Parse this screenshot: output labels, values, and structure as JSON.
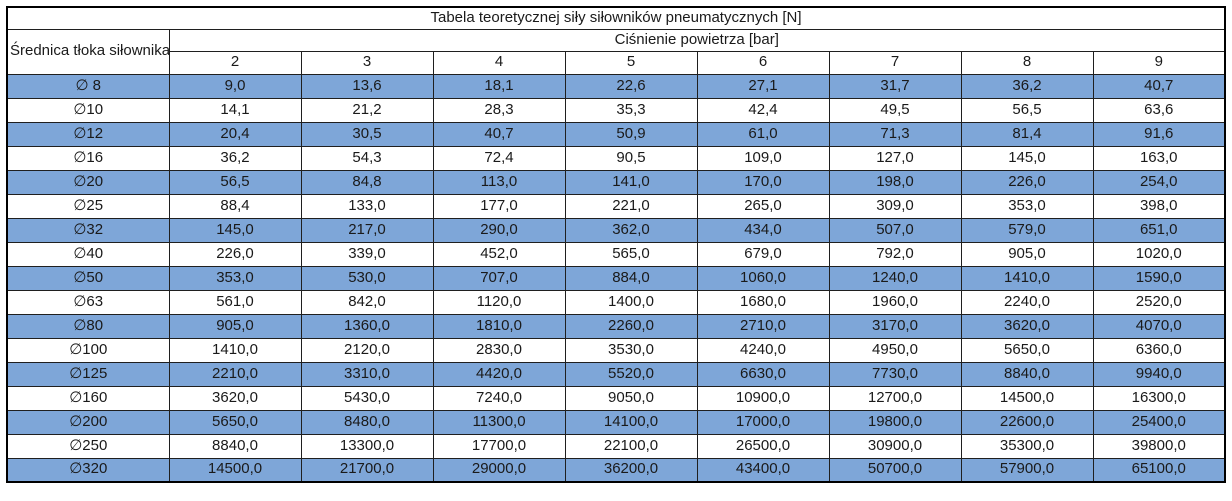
{
  "colors": {
    "highlight_row_bg": "#7EA6D8",
    "normal_row_bg": "#FFFFFF",
    "inner_border": "#1F1F1F",
    "outer_border": "#000000",
    "text": "#1A1A1A",
    "page_background": "#FFFFFF"
  },
  "chart_data": {
    "type": "table",
    "title": "Tabela teoretycznej siły siłowników pneumatycznych [N]",
    "row_axis_label": "Średnica tłoka siłownika",
    "column_group_label": "Ciśnienie powietrza [bar]",
    "columns": [
      "2",
      "3",
      "4",
      "5",
      "6",
      "7",
      "8",
      "9"
    ],
    "rows": [
      {
        "label": "∅ 8",
        "highlighted": true,
        "values": [
          "9,0",
          "13,6",
          "18,1",
          "22,6",
          "27,1",
          "31,7",
          "36,2",
          "40,7"
        ]
      },
      {
        "label": "∅10",
        "highlighted": false,
        "values": [
          "14,1",
          "21,2",
          "28,3",
          "35,3",
          "42,4",
          "49,5",
          "56,5",
          "63,6"
        ]
      },
      {
        "label": "∅12",
        "highlighted": true,
        "values": [
          "20,4",
          "30,5",
          "40,7",
          "50,9",
          "61,0",
          "71,3",
          "81,4",
          "91,6"
        ]
      },
      {
        "label": "∅16",
        "highlighted": false,
        "values": [
          "36,2",
          "54,3",
          "72,4",
          "90,5",
          "109,0",
          "127,0",
          "145,0",
          "163,0"
        ]
      },
      {
        "label": "∅20",
        "highlighted": true,
        "values": [
          "56,5",
          "84,8",
          "113,0",
          "141,0",
          "170,0",
          "198,0",
          "226,0",
          "254,0"
        ]
      },
      {
        "label": "∅25",
        "highlighted": false,
        "values": [
          "88,4",
          "133,0",
          "177,0",
          "221,0",
          "265,0",
          "309,0",
          "353,0",
          "398,0"
        ]
      },
      {
        "label": "∅32",
        "highlighted": true,
        "values": [
          "145,0",
          "217,0",
          "290,0",
          "362,0",
          "434,0",
          "507,0",
          "579,0",
          "651,0"
        ]
      },
      {
        "label": "∅40",
        "highlighted": false,
        "values": [
          "226,0",
          "339,0",
          "452,0",
          "565,0",
          "679,0",
          "792,0",
          "905,0",
          "1020,0"
        ]
      },
      {
        "label": "∅50",
        "highlighted": true,
        "values": [
          "353,0",
          "530,0",
          "707,0",
          "884,0",
          "1060,0",
          "1240,0",
          "1410,0",
          "1590,0"
        ]
      },
      {
        "label": "∅63",
        "highlighted": false,
        "values": [
          "561,0",
          "842,0",
          "1120,0",
          "1400,0",
          "1680,0",
          "1960,0",
          "2240,0",
          "2520,0"
        ]
      },
      {
        "label": "∅80",
        "highlighted": true,
        "values": [
          "905,0",
          "1360,0",
          "1810,0",
          "2260,0",
          "2710,0",
          "3170,0",
          "3620,0",
          "4070,0"
        ]
      },
      {
        "label": "∅100",
        "highlighted": false,
        "values": [
          "1410,0",
          "2120,0",
          "2830,0",
          "3530,0",
          "4240,0",
          "4950,0",
          "5650,0",
          "6360,0"
        ]
      },
      {
        "label": "∅125",
        "highlighted": true,
        "values": [
          "2210,0",
          "3310,0",
          "4420,0",
          "5520,0",
          "6630,0",
          "7730,0",
          "8840,0",
          "9940,0"
        ]
      },
      {
        "label": "∅160",
        "highlighted": false,
        "values": [
          "3620,0",
          "5430,0",
          "7240,0",
          "9050,0",
          "10900,0",
          "12700,0",
          "14500,0",
          "16300,0"
        ]
      },
      {
        "label": "∅200",
        "highlighted": true,
        "values": [
          "5650,0",
          "8480,0",
          "11300,0",
          "14100,0",
          "17000,0",
          "19800,0",
          "22600,0",
          "25400,0"
        ]
      },
      {
        "label": "∅250",
        "highlighted": false,
        "values": [
          "8840,0",
          "13300,0",
          "17700,0",
          "22100,0",
          "26500,0",
          "30900,0",
          "35300,0",
          "39800,0"
        ]
      },
      {
        "label": "∅320",
        "highlighted": true,
        "values": [
          "14500,0",
          "21700,0",
          "29000,0",
          "36200,0",
          "43400,0",
          "50700,0",
          "57900,0",
          "65100,0"
        ]
      }
    ]
  }
}
